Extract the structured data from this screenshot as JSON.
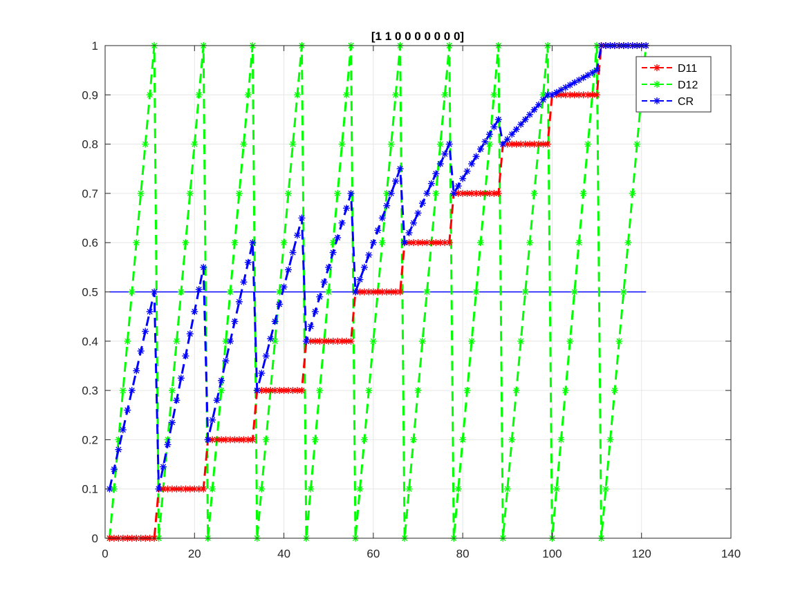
{
  "chart_data": {
    "type": "line",
    "title": "[1 1 0 0 0 0 0 0 0]",
    "xlabel": "",
    "ylabel": "",
    "xlim": [
      0,
      140
    ],
    "ylim": [
      0,
      1
    ],
    "xticks": [
      0,
      20,
      40,
      60,
      80,
      100,
      120,
      140
    ],
    "yticks": [
      0,
      0.1,
      0.2,
      0.3,
      0.4,
      0.5,
      0.6,
      0.7,
      0.8,
      0.9,
      1
    ],
    "grid": true,
    "legend": "top-right",
    "reference_line": {
      "y": 0.5,
      "x_from": 1,
      "x_to": 121,
      "color": "#0000ff"
    },
    "series": [
      {
        "name": "D11",
        "color": "#ff0000",
        "line": "dashed",
        "marker": "asterisk",
        "rule": "floor((x-1)/11)/10",
        "x_range": [
          1,
          121
        ]
      },
      {
        "name": "D12",
        "color": "#00ff00",
        "line": "dashed",
        "marker": "asterisk",
        "rule": "((x-1) mod 11)/10",
        "x_range": [
          1,
          121
        ]
      },
      {
        "name": "CR",
        "color": "#0000ff",
        "line": "dashed",
        "marker": "asterisk",
        "rule": "(D11 + D12)/2 approx, resets each cycle",
        "x_range": [
          1,
          121
        ]
      }
    ]
  }
}
